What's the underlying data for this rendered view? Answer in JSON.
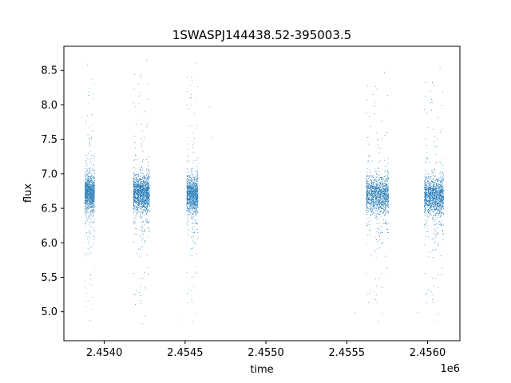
{
  "chart_data": {
    "type": "scatter",
    "title": "1SWASPJ144438.52-395003.5",
    "xlabel": "time",
    "ylabel": "flux",
    "x_offset_label": "1e6",
    "xlim": [
      2.45375,
      2.4562
    ],
    "ylim": [
      4.58,
      8.85
    ],
    "x_ticks": [
      2.454,
      2.4545,
      2.455,
      2.4555,
      2.456
    ],
    "x_tick_labels": [
      "2.4540",
      "2.4545",
      "2.4550",
      "2.4555",
      "2.4560"
    ],
    "y_ticks": [
      5.0,
      5.5,
      6.0,
      6.5,
      7.0,
      7.5,
      8.0,
      8.5
    ],
    "y_tick_labels": [
      "5.0",
      "5.5",
      "6.0",
      "6.5",
      "7.0",
      "7.5",
      "8.0",
      "8.5"
    ],
    "grid": false,
    "marker_color": "#1f77b4",
    "clusters": [
      {
        "x_range": [
          2.45388,
          2.45394
        ],
        "y_median": 6.72,
        "y_min": 4.82,
        "y_max": 8.7,
        "n_points": 1400
      },
      {
        "x_range": [
          2.45418,
          2.45428
        ],
        "y_median": 6.72,
        "y_min": 4.77,
        "y_max": 8.7,
        "n_points": 2600
      },
      {
        "x_range": [
          2.45451,
          2.45458
        ],
        "y_median": 6.7,
        "y_min": 4.8,
        "y_max": 8.66,
        "n_points": 1500
      },
      {
        "x_range": [
          2.45562,
          2.45576
        ],
        "y_median": 6.7,
        "y_min": 4.81,
        "y_max": 8.52,
        "n_points": 2400
      },
      {
        "x_range": [
          2.45598,
          2.4561
        ],
        "y_median": 6.68,
        "y_min": 4.8,
        "y_max": 8.58,
        "n_points": 2400
      }
    ],
    "outliers": [
      {
        "x": 2.45465,
        "y": 7.97
      },
      {
        "x": 2.45466,
        "y": 7.52
      },
      {
        "x": 2.45447,
        "y": 4.88
      },
      {
        "x": 2.45594,
        "y": 4.99
      },
      {
        "x": 2.45555,
        "y": 4.99
      }
    ]
  }
}
